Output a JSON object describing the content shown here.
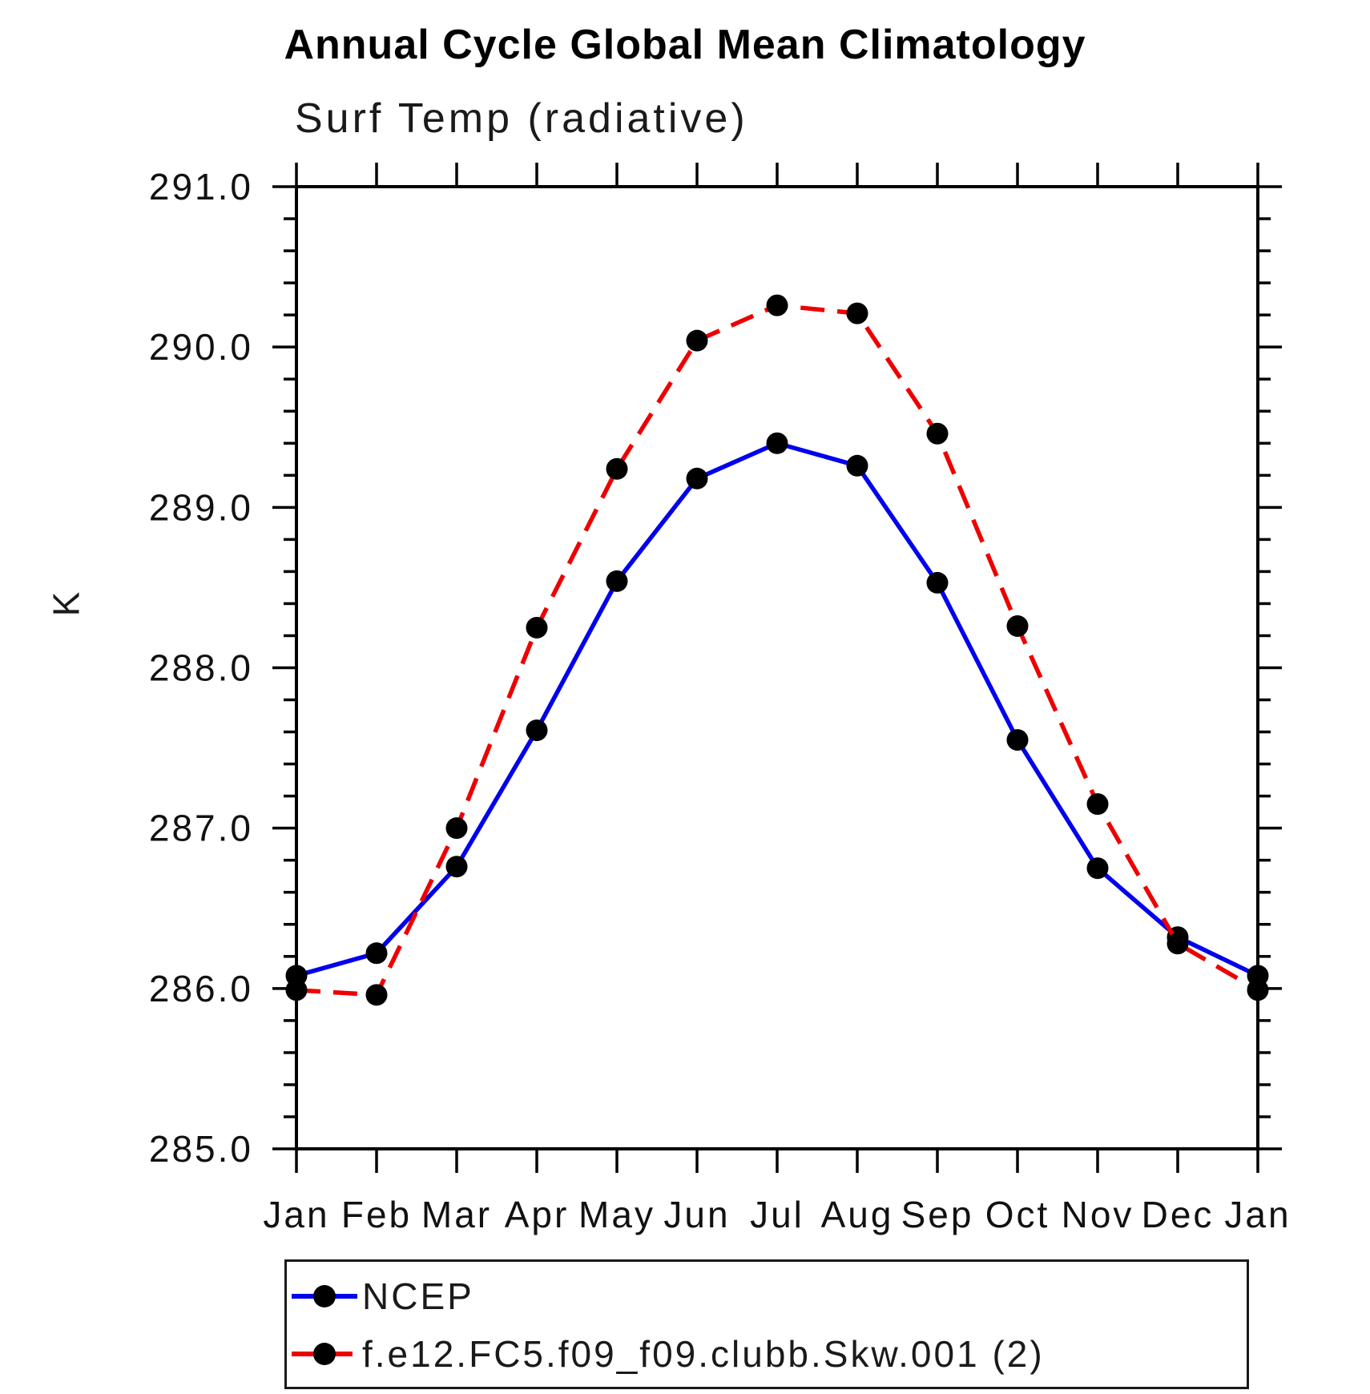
{
  "chart_data": {
    "type": "line",
    "title": "Annual Cycle Global Mean Climatology",
    "subtitle": "Surf Temp (radiative)",
    "ylabel": "K",
    "x_categories": [
      "Jan",
      "Feb",
      "Mar",
      "Apr",
      "May",
      "Jun",
      "Jul",
      "Aug",
      "Sep",
      "Oct",
      "Nov",
      "Dec",
      "Jan"
    ],
    "ylim": [
      285.0,
      291.0
    ],
    "ytick_major_interval": 1.0,
    "ytick_minor_interval": 0.2,
    "ytick_labels": [
      "285.0",
      "286.0",
      "287.0",
      "288.0",
      "289.0",
      "290.0",
      "291.0"
    ],
    "grid": false,
    "legend_position": "bottom-left",
    "marker_color": "#000000",
    "series": [
      {
        "name": "NCEP",
        "color": "#0000ee",
        "line_style": "solid",
        "marker": "circle",
        "values": [
          286.08,
          286.22,
          286.76,
          287.61,
          288.54,
          289.18,
          289.4,
          289.26,
          288.53,
          287.55,
          286.75,
          286.32,
          286.08
        ]
      },
      {
        "name": "f.e12.FC5.f09_f09.clubb.Skw.001 (2)",
        "color": "#ee0000",
        "line_style": "dashed",
        "marker": "circle",
        "values": [
          285.99,
          285.96,
          287.0,
          288.25,
          289.24,
          290.04,
          290.26,
          290.21,
          289.46,
          288.26,
          287.15,
          286.28,
          285.99
        ]
      }
    ]
  }
}
